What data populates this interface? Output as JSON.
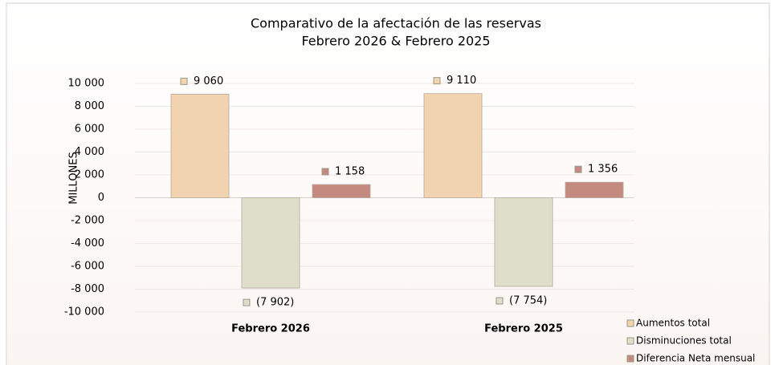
{
  "chart_data": {
    "type": "bar",
    "title": "Comparativo de la afectación de las reservas",
    "subtitle": "Febrero 2026 & Febrero 2025",
    "ylabel": "MILLONES",
    "categories": [
      "Febrero 2026",
      "Febrero 2025"
    ],
    "series": [
      {
        "name": "Aumentos total",
        "color": "#f2d3b0",
        "values": [
          9060,
          9110
        ],
        "value_labels": [
          "9 060",
          "9 110"
        ]
      },
      {
        "name": "Disminuciones total",
        "color": "#dedecb",
        "values": [
          -7902,
          -7754
        ],
        "value_labels": [
          "(7 902)",
          "(7 754)"
        ]
      },
      {
        "name": "Diferencia Neta mensual",
        "color": "#c48a80",
        "values": [
          1158,
          1356
        ],
        "value_labels": [
          "1 158",
          "1 356"
        ]
      }
    ],
    "ylim": [
      -10000,
      10000
    ],
    "yticks": [
      {
        "value": -10000,
        "label": "-10 000"
      },
      {
        "value": -8000,
        "label": "-8 000"
      },
      {
        "value": -6000,
        "label": "-6 000"
      },
      {
        "value": -4000,
        "label": "-4 000"
      },
      {
        "value": -2000,
        "label": "-2 000"
      },
      0,
      {
        "value": 2000,
        "label": "2 000"
      },
      {
        "value": 4000,
        "label": "4 000"
      },
      {
        "value": 6000,
        "label": "6 000"
      },
      {
        "value": 8000,
        "label": "8 000"
      },
      {
        "value": 10000,
        "label": "10 000"
      }
    ],
    "negative_tick_color": "#ff0000",
    "grid": true,
    "legend": "lower right"
  }
}
